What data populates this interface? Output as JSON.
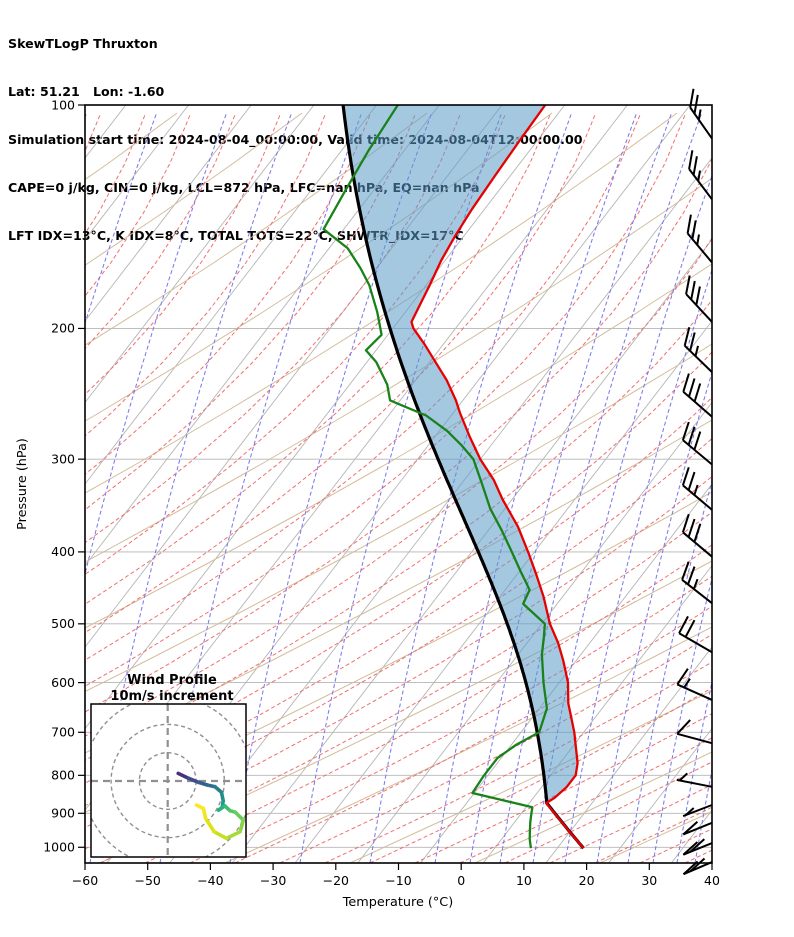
{
  "header": {
    "title": "SkewTLogP Thruxton",
    "line_latlon": "Lat: 51.21   Lon: -1.60",
    "line_time": "Simulation start time: 2024-08-04_00:00:00, Valid time: 2024-08-04T12:00:00.00",
    "line_cape": "CAPE=0 j/kg, CIN=0 j/kg, LCL=872 hPa, LFC=nan hPa, EQ=nan hPa",
    "line_indices": "LFT IDX=13°C, K IDX=8°C, TOTAL TOTS=22°C, SHWTR_IDX=17°C"
  },
  "axes": {
    "x_label": "Temperature (°C)",
    "y_label": "Pressure (hPa)",
    "x_tick_values": [
      -60,
      -50,
      -40,
      -30,
      -20,
      -10,
      0,
      10,
      20,
      30,
      40
    ],
    "x_tick_labels": [
      "−60",
      "−50",
      "−40",
      "−30",
      "−20",
      "−10",
      "0",
      "10",
      "20",
      "30",
      "40"
    ],
    "y_tick_values": [
      100,
      200,
      300,
      400,
      500,
      600,
      700,
      800,
      900,
      1000
    ],
    "y_tick_labels": [
      "100",
      "200",
      "300",
      "400",
      "500",
      "600",
      "700",
      "800",
      "900",
      "1000"
    ]
  },
  "inset": {
    "title_line1": "Wind Profile",
    "title_line2": "10m/s increment",
    "ring_radii_ms": [
      10,
      20,
      30
    ]
  },
  "colors": {
    "temperature_line": "#e60000",
    "dewpoint_line": "#198219",
    "parcel_line": "#000000",
    "cape_shade": "#5b9bc9",
    "isotherm_line": "#b5b5b5",
    "pressure_line": "#b5b5b5",
    "dry_adiabat_line": "#d3bd9b",
    "moist_adiabat_line": "#ef7070",
    "mixing_ratio_line": "#7b7bea",
    "inset_grid": "#909090",
    "barb_color": "#000000"
  },
  "chart_data": {
    "type": "skewt-logp",
    "title": "SkewTLogP Thruxton",
    "xlabel": "Temperature (°C)",
    "ylabel": "Pressure (hPa)",
    "xlim_c": [
      -60,
      40
    ],
    "plim_hpa": [
      100,
      1050
    ],
    "grid": true,
    "series": [
      {
        "name": "temperature",
        "units": "degC",
        "points": [
          [
            1003,
            17.7
          ],
          [
            950,
            13.2
          ],
          [
            900,
            8.8
          ],
          [
            872,
            6.2
          ],
          [
            858,
            6.9
          ],
          [
            830,
            7.5
          ],
          [
            800,
            7.5
          ],
          [
            770,
            6.3
          ],
          [
            740,
            4.5
          ],
          [
            700,
            2.0
          ],
          [
            670,
            -0.2
          ],
          [
            640,
            -2.5
          ],
          [
            600,
            -5.1
          ],
          [
            560,
            -8.6
          ],
          [
            530,
            -11.6
          ],
          [
            500,
            -15.2
          ],
          [
            460,
            -19.5
          ],
          [
            430,
            -23.3
          ],
          [
            400,
            -27.5
          ],
          [
            370,
            -32.2
          ],
          [
            340,
            -38.0
          ],
          [
            320,
            -41.8
          ],
          [
            300,
            -46.5
          ],
          [
            280,
            -50.9
          ],
          [
            260,
            -55.4
          ],
          [
            250,
            -57.6
          ],
          [
            235,
            -61.5
          ],
          [
            220,
            -66.2
          ],
          [
            210,
            -69.5
          ],
          [
            200,
            -73.2
          ],
          [
            196,
            -74.3
          ],
          [
            188,
            -74.9
          ],
          [
            175,
            -75.9
          ],
          [
            162,
            -77.1
          ],
          [
            150,
            -77.9
          ],
          [
            138,
            -78.5
          ],
          [
            125,
            -78.9
          ],
          [
            112,
            -79.3
          ],
          [
            100,
            -79.6
          ]
        ]
      },
      {
        "name": "dewpoint",
        "units": "degC",
        "points": [
          [
            1003,
            9.3
          ],
          [
            975,
            8.0
          ],
          [
            950,
            7.0
          ],
          [
            925,
            6.0
          ],
          [
            900,
            5.1
          ],
          [
            883,
            4.5
          ],
          [
            845,
            -6.8
          ],
          [
            800,
            -7.1
          ],
          [
            758,
            -7.1
          ],
          [
            727,
            -5.7
          ],
          [
            700,
            -3.6
          ],
          [
            650,
            -5.3
          ],
          [
            600,
            -9.0
          ],
          [
            550,
            -12.7
          ],
          [
            520,
            -14.6
          ],
          [
            500,
            -16.0
          ],
          [
            470,
            -21.9
          ],
          [
            450,
            -22.6
          ],
          [
            425,
            -26.3
          ],
          [
            400,
            -30.1
          ],
          [
            375,
            -34.2
          ],
          [
            350,
            -38.8
          ],
          [
            325,
            -43.0
          ],
          [
            300,
            -47.6
          ],
          [
            287,
            -51.3
          ],
          [
            275,
            -55.2
          ],
          [
            262,
            -60.5
          ],
          [
            250,
            -68.1
          ],
          [
            238,
            -70.5
          ],
          [
            222,
            -75.0
          ],
          [
            214,
            -78.1
          ],
          [
            204,
            -77.5
          ],
          [
            190,
            -81.0
          ],
          [
            175,
            -85.5
          ],
          [
            166,
            -89.0
          ],
          [
            156,
            -93.5
          ],
          [
            147,
            -99.7
          ],
          [
            130,
            -101.0
          ],
          [
            115,
            -102.2
          ],
          [
            100,
            -103.1
          ]
        ]
      },
      {
        "name": "surface_parcel",
        "units": "degC",
        "surface_p": 1003,
        "surface_t": 17.7,
        "lcl_p": 872
      }
    ],
    "cape_j_kg": 0,
    "cin_j_kg": 0,
    "lcl_hpa": 872,
    "wind_barbs": [
      {
        "p": 111,
        "a": 55,
        "f": 2,
        "h": 1,
        "d": 0
      },
      {
        "p": 134,
        "a": 53,
        "f": 2,
        "h": 1,
        "d": 0
      },
      {
        "p": 163,
        "a": 50,
        "f": 2,
        "h": 1,
        "d": 0
      },
      {
        "p": 196,
        "a": 47,
        "f": 3,
        "h": 0,
        "d": 0
      },
      {
        "p": 229,
        "a": 44,
        "f": 2,
        "h": 1,
        "d": 0
      },
      {
        "p": 263,
        "a": 41,
        "f": 3,
        "h": 0,
        "d": 0
      },
      {
        "p": 305,
        "a": 40,
        "f": 3,
        "h": 0,
        "d": 0
      },
      {
        "p": 351,
        "a": 40,
        "f": 2,
        "h": 1,
        "d": 0
      },
      {
        "p": 406,
        "a": 40,
        "f": 3,
        "h": 0,
        "d": 0
      },
      {
        "p": 469,
        "a": 38,
        "f": 2,
        "h": 1,
        "d": 0
      },
      {
        "p": 546,
        "a": 30,
        "f": 2,
        "h": 0,
        "d": 0
      },
      {
        "p": 633,
        "a": 24,
        "f": 1,
        "h": 1,
        "d": 0
      },
      {
        "p": 724,
        "a": 15,
        "f": 1,
        "h": 0,
        "d": 0
      },
      {
        "p": 829,
        "a": 11,
        "f": 0,
        "h": 1,
        "d": 0
      },
      {
        "p": 877,
        "a": 21,
        "f": 0,
        "h": 1,
        "d": 1
      },
      {
        "p": 927,
        "a": 22,
        "f": 1,
        "h": 0,
        "d": 1
      },
      {
        "p": 987,
        "a": 22,
        "f": 2,
        "h": 0,
        "d": 1
      },
      {
        "p": 1047,
        "a": 23,
        "f": 2,
        "h": 0,
        "d": 1
      }
    ],
    "hodograph_trace_ms": [
      [
        3.7,
        -2.7
      ],
      [
        7.3,
        -1.0
      ],
      [
        11.0,
        0.5
      ],
      [
        14.0,
        1.4
      ],
      [
        16.7,
        2.0
      ],
      [
        19.0,
        4.0
      ],
      [
        19.6,
        7.0
      ],
      [
        19.3,
        9.3
      ],
      [
        18.0,
        10.3
      ],
      [
        20.2,
        8.8
      ],
      [
        22.0,
        10.5
      ],
      [
        23.8,
        11.0
      ],
      [
        26.7,
        13.8
      ],
      [
        25.6,
        17.9
      ],
      [
        20.8,
        20.3
      ],
      [
        16.4,
        17.9
      ],
      [
        13.4,
        13.2
      ],
      [
        12.6,
        9.7
      ],
      [
        10.2,
        8.5
      ]
    ],
    "hodograph_colors": [
      "#46327e",
      "#3e4c8a",
      "#365c8d",
      "#2f6c8e",
      "#287d8e",
      "#228c8d",
      "#1f9a8a",
      "#20a486",
      "#2cb17e",
      "#3dbc74",
      "#51c56a",
      "#69cd5b",
      "#85d54a",
      "#a5db36",
      "#c5e021",
      "#dde318",
      "#f1e51d",
      "#fbe723"
    ]
  }
}
